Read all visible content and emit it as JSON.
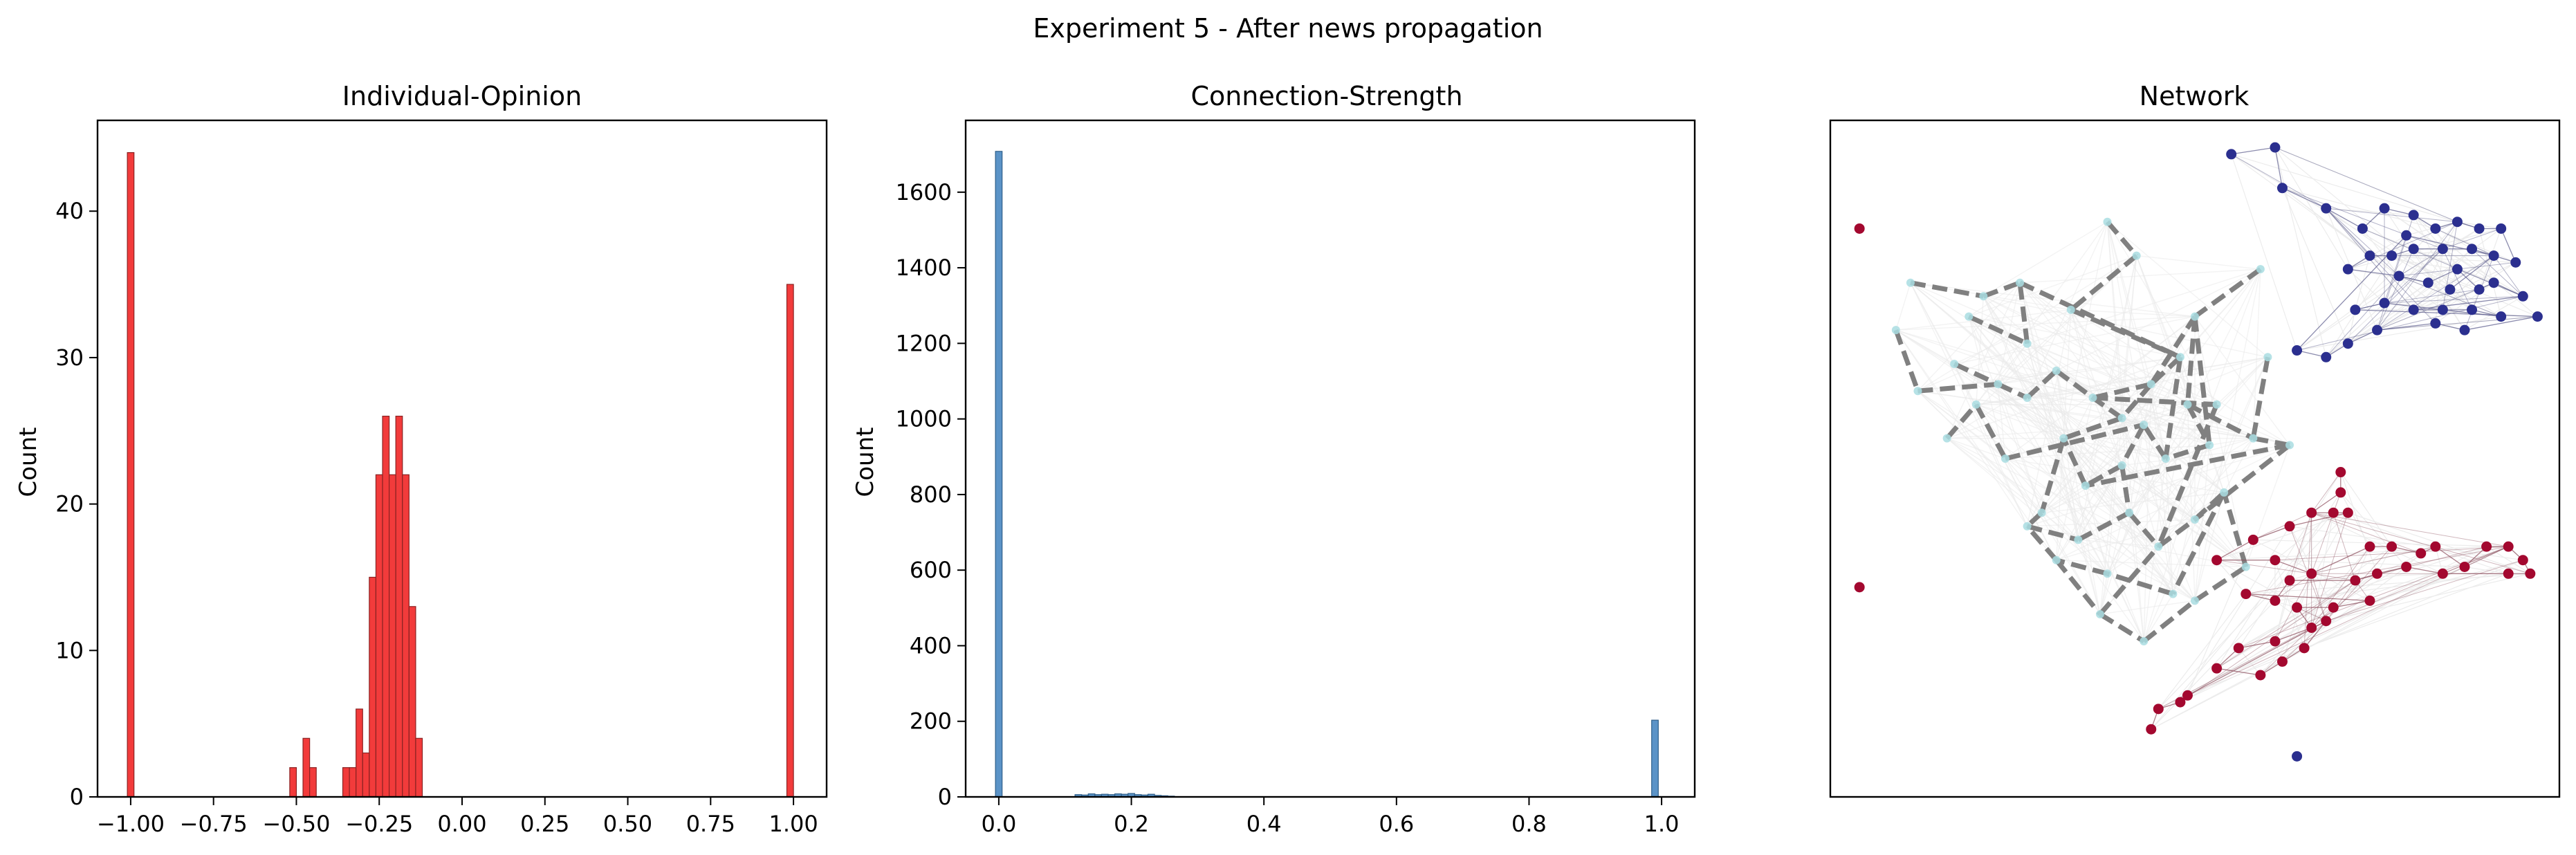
{
  "figure": {
    "suptitle": "Experiment 5 - After news propagation"
  },
  "colors": {
    "opinion_bar": "#f23b3b",
    "opinion_edge": "#8a2222",
    "strength_bar": "#5b93c7",
    "strength_edge": "#2f5f8a",
    "edge_dashed": "#808080",
    "node_blue_cluster": "#2b2f8f",
    "node_red_cluster": "#a3082f",
    "node_light": "#a9dde2"
  },
  "chart_data": [
    {
      "type": "bar",
      "title": "Individual-Opinion",
      "xlabel": "",
      "ylabel": "Count",
      "xlim": [
        -1.1,
        1.1
      ],
      "ylim": [
        0,
        46.2
      ],
      "xticks": [
        "−1.00",
        "−0.75",
        "−0.50",
        "−0.25",
        "0.00",
        "0.25",
        "0.50",
        "0.75",
        "1.00"
      ],
      "yticks": [
        "0",
        "10",
        "20",
        "30",
        "40"
      ],
      "bin_width": 0.02,
      "bins": [
        {
          "x": -1.0,
          "count": 44
        },
        {
          "x": -0.51,
          "count": 2
        },
        {
          "x": -0.47,
          "count": 4
        },
        {
          "x": -0.45,
          "count": 2
        },
        {
          "x": -0.35,
          "count": 2
        },
        {
          "x": -0.33,
          "count": 2
        },
        {
          "x": -0.31,
          "count": 6
        },
        {
          "x": -0.29,
          "count": 3
        },
        {
          "x": -0.27,
          "count": 15
        },
        {
          "x": -0.25,
          "count": 22
        },
        {
          "x": -0.23,
          "count": 26
        },
        {
          "x": -0.21,
          "count": 22
        },
        {
          "x": -0.19,
          "count": 26
        },
        {
          "x": -0.17,
          "count": 22
        },
        {
          "x": -0.15,
          "count": 13
        },
        {
          "x": -0.13,
          "count": 4
        },
        {
          "x": 0.99,
          "count": 35
        }
      ]
    },
    {
      "type": "bar",
      "title": "Connection-Strength",
      "xlabel": "",
      "ylabel": "Count",
      "xlim": [
        -0.05,
        1.05
      ],
      "ylim": [
        0,
        1790
      ],
      "xticks": [
        "0.0",
        "0.2",
        "0.4",
        "0.6",
        "0.8",
        "1.0"
      ],
      "yticks": [
        "0",
        "200",
        "400",
        "600",
        "800",
        "1000",
        "1200",
        "1400",
        "1600"
      ],
      "bin_width": 0.01,
      "bins": [
        {
          "x": 0.0,
          "count": 1708
        },
        {
          "x": 0.12,
          "count": 6
        },
        {
          "x": 0.13,
          "count": 5
        },
        {
          "x": 0.14,
          "count": 8
        },
        {
          "x": 0.15,
          "count": 6
        },
        {
          "x": 0.16,
          "count": 7
        },
        {
          "x": 0.17,
          "count": 6
        },
        {
          "x": 0.18,
          "count": 8
        },
        {
          "x": 0.19,
          "count": 7
        },
        {
          "x": 0.2,
          "count": 9
        },
        {
          "x": 0.21,
          "count": 6
        },
        {
          "x": 0.22,
          "count": 5
        },
        {
          "x": 0.23,
          "count": 7
        },
        {
          "x": 0.24,
          "count": 4
        },
        {
          "x": 0.25,
          "count": 3
        },
        {
          "x": 0.26,
          "count": 2
        },
        {
          "x": 0.99,
          "count": 203
        }
      ]
    },
    {
      "type": "network",
      "title": "Network",
      "blue_nodes": [
        [
          0.55,
          0.05
        ],
        [
          0.61,
          0.04
        ],
        [
          0.62,
          0.1
        ],
        [
          0.68,
          0.13
        ],
        [
          0.73,
          0.16
        ],
        [
          0.76,
          0.13
        ],
        [
          0.8,
          0.14
        ],
        [
          0.83,
          0.16
        ],
        [
          0.86,
          0.15
        ],
        [
          0.89,
          0.16
        ],
        [
          0.92,
          0.16
        ],
        [
          0.94,
          0.21
        ],
        [
          0.88,
          0.19
        ],
        [
          0.84,
          0.19
        ],
        [
          0.8,
          0.19
        ],
        [
          0.77,
          0.2
        ],
        [
          0.74,
          0.2
        ],
        [
          0.71,
          0.22
        ],
        [
          0.78,
          0.23
        ],
        [
          0.82,
          0.24
        ],
        [
          0.86,
          0.22
        ],
        [
          0.89,
          0.25
        ],
        [
          0.91,
          0.24
        ],
        [
          0.95,
          0.26
        ],
        [
          0.8,
          0.28
        ],
        [
          0.84,
          0.28
        ],
        [
          0.88,
          0.28
        ],
        [
          0.92,
          0.29
        ],
        [
          0.76,
          0.27
        ],
        [
          0.72,
          0.28
        ],
        [
          0.97,
          0.29
        ],
        [
          0.87,
          0.31
        ],
        [
          0.83,
          0.3
        ],
        [
          0.75,
          0.31
        ],
        [
          0.71,
          0.33
        ],
        [
          0.68,
          0.35
        ],
        [
          0.64,
          0.34
        ],
        [
          0.79,
          0.17
        ],
        [
          0.91,
          0.2
        ],
        [
          0.85,
          0.25
        ]
      ],
      "red_nodes": [
        [
          0.7,
          0.52
        ],
        [
          0.7,
          0.55
        ],
        [
          0.66,
          0.58
        ],
        [
          0.69,
          0.58
        ],
        [
          0.71,
          0.58
        ],
        [
          0.63,
          0.6
        ],
        [
          0.58,
          0.62
        ],
        [
          0.53,
          0.65
        ],
        [
          0.61,
          0.65
        ],
        [
          0.66,
          0.67
        ],
        [
          0.74,
          0.63
        ],
        [
          0.77,
          0.63
        ],
        [
          0.81,
          0.64
        ],
        [
          0.83,
          0.63
        ],
        [
          0.87,
          0.66
        ],
        [
          0.9,
          0.63
        ],
        [
          0.93,
          0.63
        ],
        [
          0.95,
          0.65
        ],
        [
          0.96,
          0.67
        ],
        [
          0.93,
          0.67
        ],
        [
          0.84,
          0.67
        ],
        [
          0.79,
          0.66
        ],
        [
          0.75,
          0.67
        ],
        [
          0.72,
          0.68
        ],
        [
          0.63,
          0.68
        ],
        [
          0.61,
          0.71
        ],
        [
          0.57,
          0.7
        ],
        [
          0.74,
          0.71
        ],
        [
          0.69,
          0.72
        ],
        [
          0.64,
          0.72
        ],
        [
          0.66,
          0.75
        ],
        [
          0.61,
          0.77
        ],
        [
          0.56,
          0.78
        ],
        [
          0.53,
          0.81
        ],
        [
          0.59,
          0.82
        ],
        [
          0.62,
          0.8
        ],
        [
          0.65,
          0.78
        ],
        [
          0.68,
          0.74
        ],
        [
          0.49,
          0.85
        ],
        [
          0.48,
          0.86
        ],
        [
          0.45,
          0.87
        ],
        [
          0.44,
          0.9
        ]
      ],
      "isolated_red": [
        [
          0.04,
          0.16
        ],
        [
          0.04,
          0.69
        ]
      ],
      "isolated_blue": [
        [
          0.64,
          0.94
        ]
      ],
      "light_nodes": [
        [
          0.11,
          0.24
        ],
        [
          0.19,
          0.29
        ],
        [
          0.21,
          0.26
        ],
        [
          0.26,
          0.24
        ],
        [
          0.17,
          0.36
        ],
        [
          0.23,
          0.39
        ],
        [
          0.27,
          0.41
        ],
        [
          0.31,
          0.37
        ],
        [
          0.36,
          0.41
        ],
        [
          0.4,
          0.44
        ],
        [
          0.44,
          0.39
        ],
        [
          0.48,
          0.35
        ],
        [
          0.5,
          0.29
        ],
        [
          0.49,
          0.42
        ],
        [
          0.53,
          0.42
        ],
        [
          0.58,
          0.47
        ],
        [
          0.63,
          0.48
        ],
        [
          0.52,
          0.48
        ],
        [
          0.46,
          0.5
        ],
        [
          0.43,
          0.45
        ],
        [
          0.4,
          0.51
        ],
        [
          0.35,
          0.54
        ],
        [
          0.32,
          0.47
        ],
        [
          0.29,
          0.58
        ],
        [
          0.27,
          0.6
        ],
        [
          0.34,
          0.62
        ],
        [
          0.41,
          0.58
        ],
        [
          0.45,
          0.63
        ],
        [
          0.5,
          0.59
        ],
        [
          0.54,
          0.55
        ],
        [
          0.47,
          0.7
        ],
        [
          0.38,
          0.67
        ],
        [
          0.31,
          0.65
        ],
        [
          0.37,
          0.73
        ],
        [
          0.43,
          0.77
        ],
        [
          0.5,
          0.71
        ],
        [
          0.57,
          0.66
        ],
        [
          0.16,
          0.47
        ],
        [
          0.2,
          0.42
        ],
        [
          0.24,
          0.5
        ],
        [
          0.09,
          0.31
        ],
        [
          0.12,
          0.4
        ],
        [
          0.38,
          0.15
        ],
        [
          0.42,
          0.2
        ],
        [
          0.33,
          0.28
        ],
        [
          0.59,
          0.22
        ],
        [
          0.6,
          0.35
        ],
        [
          0.27,
          0.33
        ]
      ],
      "dashed_edges": [
        [
          0,
          2
        ],
        [
          2,
          3
        ],
        [
          3,
          11
        ],
        [
          11,
          10
        ],
        [
          10,
          9
        ],
        [
          9,
          8
        ],
        [
          8,
          14
        ],
        [
          14,
          13
        ],
        [
          13,
          15
        ],
        [
          15,
          16
        ],
        [
          16,
          21
        ],
        [
          21,
          22
        ],
        [
          22,
          23
        ],
        [
          23,
          24
        ],
        [
          24,
          25
        ],
        [
          25,
          26
        ],
        [
          26,
          27
        ],
        [
          27,
          28
        ],
        [
          28,
          29
        ],
        [
          29,
          30
        ],
        [
          30,
          31
        ],
        [
          31,
          32
        ],
        [
          32,
          33
        ],
        [
          33,
          34
        ],
        [
          34,
          35
        ],
        [
          35,
          36
        ],
        [
          4,
          5
        ],
        [
          5,
          6
        ],
        [
          6,
          7
        ],
        [
          7,
          8
        ],
        [
          8,
          10
        ],
        [
          10,
          12
        ],
        [
          12,
          13
        ],
        [
          13,
          17
        ],
        [
          17,
          18
        ],
        [
          18,
          19
        ],
        [
          19,
          20
        ],
        [
          20,
          21
        ],
        [
          37,
          38
        ],
        [
          38,
          39
        ],
        [
          39,
          19
        ],
        [
          40,
          41
        ],
        [
          41,
          5
        ],
        [
          42,
          43
        ],
        [
          43,
          44
        ],
        [
          44,
          11
        ],
        [
          45,
          12
        ],
        [
          46,
          15
        ],
        [
          47,
          3
        ],
        [
          1,
          47
        ],
        [
          11,
          18
        ],
        [
          12,
          17
        ],
        [
          16,
          28
        ],
        [
          14,
          27
        ],
        [
          9,
          22
        ],
        [
          20,
          26
        ],
        [
          36,
          29
        ],
        [
          33,
          27
        ],
        [
          32,
          24
        ]
      ]
    }
  ]
}
